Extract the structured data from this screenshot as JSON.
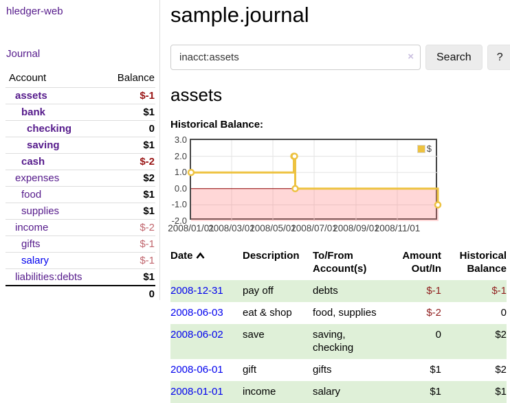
{
  "app": {
    "title": "hledger-web"
  },
  "sidebar": {
    "journal_link": "Journal",
    "accounts_table": {
      "headers": {
        "account": "Account",
        "balance": "Balance"
      },
      "rows": [
        {
          "account": "assets",
          "level": 1,
          "emphasis": true,
          "balance": "$-1",
          "negative": "strong"
        },
        {
          "account": "bank",
          "level": 2,
          "emphasis": true,
          "balance": "$1",
          "negative": null
        },
        {
          "account": "checking",
          "level": 3,
          "emphasis": true,
          "balance": "0",
          "negative": null
        },
        {
          "account": "saving",
          "level": 3,
          "emphasis": true,
          "balance": "$1",
          "negative": null
        },
        {
          "account": "cash",
          "level": 2,
          "emphasis": true,
          "balance": "$-2",
          "negative": "strong"
        },
        {
          "account": "expenses",
          "level": 1,
          "emphasis": false,
          "balance": "$2",
          "negative": null
        },
        {
          "account": "food",
          "level": 2,
          "emphasis": false,
          "balance": "$1",
          "negative": null
        },
        {
          "account": "supplies",
          "level": 2,
          "emphasis": false,
          "balance": "$1",
          "negative": null
        },
        {
          "account": "income",
          "level": 1,
          "emphasis": false,
          "balance": "$-2",
          "negative": "soft"
        },
        {
          "account": "gifts",
          "level": 2,
          "emphasis": false,
          "balance": "$-1",
          "negative": "soft"
        },
        {
          "account": "salary",
          "level": 2,
          "emphasis": false,
          "link_state": "unvisited",
          "balance": "$-1",
          "negative": "soft"
        },
        {
          "account": "liabilities:debts",
          "level": 1,
          "emphasis": false,
          "balance": "$1",
          "negative": null
        }
      ],
      "total": "0"
    }
  },
  "main": {
    "title": "sample.journal",
    "search": {
      "value": "inacct:assets",
      "clear_icon": "×",
      "search_label": "Search",
      "help_label": "?"
    },
    "account_heading": "assets",
    "chart_title": "Historical Balance:",
    "register_table": {
      "headers": {
        "date": "Date",
        "description": "Description",
        "accounts": "To/From Account(s)",
        "amount": "Amount Out/In",
        "balance": "Historical Balance"
      },
      "rows": [
        {
          "date": "2008-12-31",
          "description": "pay off",
          "accounts": "debts",
          "amount": "$-1",
          "amount_negative": true,
          "balance": "$-1",
          "balance_negative": true
        },
        {
          "date": "2008-06-03",
          "description": "eat & shop",
          "accounts": "food, supplies",
          "amount": "$-2",
          "amount_negative": true,
          "balance": "0",
          "balance_negative": false
        },
        {
          "date": "2008-06-02",
          "description": "save",
          "accounts": "saving, checking",
          "amount": "0",
          "amount_negative": false,
          "balance": "$2",
          "balance_negative": false
        },
        {
          "date": "2008-06-01",
          "description": "gift",
          "accounts": "gifts",
          "amount": "$1",
          "amount_negative": false,
          "balance": "$2",
          "balance_negative": false
        },
        {
          "date": "2008-01-01",
          "description": "income",
          "accounts": "salary",
          "amount": "$1",
          "amount_negative": false,
          "balance": "$1",
          "balance_negative": false
        }
      ]
    }
  },
  "chart_data": {
    "type": "line",
    "step": true,
    "title": "Historical Balance:",
    "series": [
      {
        "name": "$",
        "color": "#EDC240",
        "points": [
          {
            "date": "2008-01-01",
            "x": 0,
            "y": 1
          },
          {
            "date": "2008-06-01",
            "x": 152,
            "y": 2
          },
          {
            "date": "2008-06-02",
            "x": 153,
            "y": 2
          },
          {
            "date": "2008-06-03",
            "x": 154,
            "y": 0
          },
          {
            "date": "2008-12-31",
            "x": 365,
            "y": -1
          }
        ]
      }
    ],
    "xlim": [
      0,
      366
    ],
    "ylim": [
      -2,
      3
    ],
    "y_ticks": [
      "3.0",
      "2.0",
      "1.0",
      "0.0",
      "-1.0",
      "-2.0"
    ],
    "x_ticks": [
      {
        "x": 0,
        "label": "2008/01/01"
      },
      {
        "x": 60,
        "label": "2008/03/01"
      },
      {
        "x": 121,
        "label": "2008/05/01"
      },
      {
        "x": 182,
        "label": "2008/07/01"
      },
      {
        "x": 244,
        "label": "2008/09/01"
      },
      {
        "x": 305,
        "label": "2008/11/01"
      }
    ],
    "grid": true,
    "gridline_color": "#e3e3e3",
    "negative_region_fill": "rgba(255,130,130,0.32)",
    "zero_line_color": "#8b0000",
    "legend": {
      "label": "$",
      "swatch_color": "#EDC240",
      "position": "top-right"
    }
  }
}
